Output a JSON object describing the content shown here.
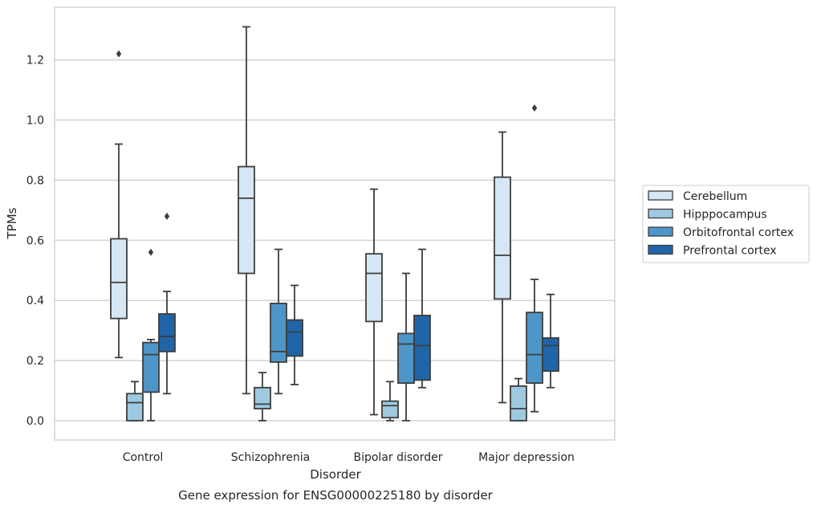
{
  "chart_data": {
    "type": "box",
    "xlabel": "Disorder",
    "ylabel": "TPMs",
    "caption": "Gene expression for ENSG00000225180 by disorder",
    "ylim": [
      -0.065,
      1.38
    ],
    "yticks": [
      "0.0",
      "0.2",
      "0.4",
      "0.6",
      "0.8",
      "1.0",
      "1.2"
    ],
    "grid": "horizontal",
    "legend_position": "right",
    "categories": [
      "Control",
      "Schizophrenia",
      "Bipolar disorder",
      "Major depression"
    ],
    "series": [
      {
        "name": "Cerebellum",
        "color": "#d6e6f4",
        "boxes": [
          {
            "whislo": 0.21,
            "q1": 0.34,
            "med": 0.46,
            "q3": 0.605,
            "whishi": 0.92,
            "fliers": [
              1.22
            ]
          },
          {
            "whislo": 0.09,
            "q1": 0.49,
            "med": 0.74,
            "q3": 0.845,
            "whishi": 1.31,
            "fliers": []
          },
          {
            "whislo": 0.02,
            "q1": 0.33,
            "med": 0.49,
            "q3": 0.555,
            "whishi": 0.77,
            "fliers": []
          },
          {
            "whislo": 0.06,
            "q1": 0.405,
            "med": 0.55,
            "q3": 0.81,
            "whishi": 0.96,
            "fliers": []
          }
        ]
      },
      {
        "name": "Hipppocampus",
        "color": "#9ecae1",
        "boxes": [
          {
            "whislo": 0.0,
            "q1": 0.0,
            "med": 0.06,
            "q3": 0.09,
            "whishi": 0.13,
            "fliers": []
          },
          {
            "whislo": 0.0,
            "q1": 0.04,
            "med": 0.055,
            "q3": 0.11,
            "whishi": 0.16,
            "fliers": []
          },
          {
            "whislo": 0.0,
            "q1": 0.01,
            "med": 0.05,
            "q3": 0.065,
            "whishi": 0.13,
            "fliers": []
          },
          {
            "whislo": 0.0,
            "q1": 0.0,
            "med": 0.04,
            "q3": 0.115,
            "whishi": 0.14,
            "fliers": []
          }
        ]
      },
      {
        "name": "Orbitofrontal cortex",
        "color": "#4f96c8",
        "boxes": [
          {
            "whislo": 0.0,
            "q1": 0.095,
            "med": 0.22,
            "q3": 0.26,
            "whishi": 0.27,
            "fliers": [
              0.56
            ]
          },
          {
            "whislo": 0.09,
            "q1": 0.195,
            "med": 0.23,
            "q3": 0.39,
            "whishi": 0.57,
            "fliers": []
          },
          {
            "whislo": 0.0,
            "q1": 0.125,
            "med": 0.255,
            "q3": 0.29,
            "whishi": 0.49,
            "fliers": []
          },
          {
            "whislo": 0.03,
            "q1": 0.125,
            "med": 0.22,
            "q3": 0.36,
            "whishi": 0.47,
            "fliers": [
              1.04
            ]
          }
        ]
      },
      {
        "name": "Prefrontal cortex",
        "color": "#2065a8",
        "boxes": [
          {
            "whislo": 0.09,
            "q1": 0.23,
            "med": 0.28,
            "q3": 0.355,
            "whishi": 0.43,
            "fliers": [
              0.68
            ]
          },
          {
            "whislo": 0.12,
            "q1": 0.215,
            "med": 0.295,
            "q3": 0.335,
            "whishi": 0.45,
            "fliers": []
          },
          {
            "whislo": 0.11,
            "q1": 0.135,
            "med": 0.25,
            "q3": 0.35,
            "whishi": 0.57,
            "fliers": []
          },
          {
            "whislo": 0.11,
            "q1": 0.165,
            "med": 0.25,
            "q3": 0.275,
            "whishi": 0.42,
            "fliers": []
          }
        ]
      }
    ]
  }
}
